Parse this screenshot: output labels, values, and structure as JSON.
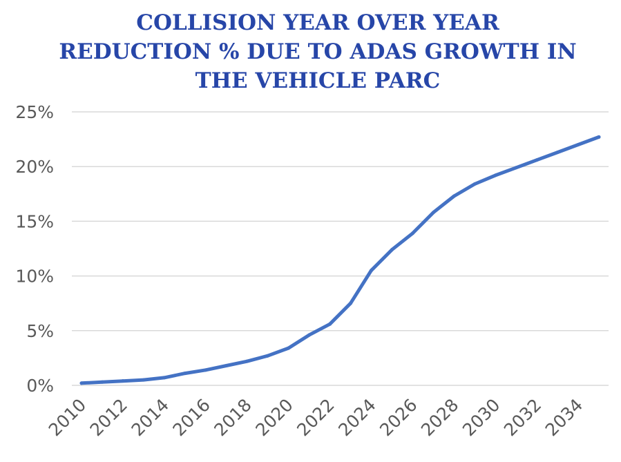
{
  "chart_data": {
    "type": "line",
    "title_lines": [
      "COLLISION YEAR OVER YEAR",
      "REDUCTION % DUE TO ADAS GROWTH IN",
      "THE VEHICLE PARC"
    ],
    "xlabel": "",
    "ylabel": "",
    "x": [
      2010,
      2011,
      2012,
      2013,
      2014,
      2015,
      2016,
      2017,
      2018,
      2019,
      2020,
      2021,
      2022,
      2023,
      2024,
      2025,
      2026,
      2027,
      2028,
      2029,
      2030,
      2031,
      2032,
      2033,
      2034,
      2035
    ],
    "series": [
      {
        "values": [
          0.2,
          0.3,
          0.4,
          0.5,
          0.7,
          1.1,
          1.4,
          1.8,
          2.2,
          2.7,
          3.4,
          4.6,
          5.6,
          7.5,
          10.5,
          12.4,
          13.9,
          15.8,
          17.3,
          18.4,
          19.2,
          19.9,
          20.6,
          21.3,
          22.0,
          22.7
        ]
      }
    ],
    "y_ticks": [
      "0%",
      "5%",
      "10%",
      "15%",
      "20%",
      "25%"
    ],
    "x_tick_labels": [
      "2010",
      "2012",
      "2014",
      "2016",
      "2018",
      "2020",
      "2022",
      "2024",
      "2026",
      "2028",
      "2030",
      "2032",
      "2034"
    ],
    "ylim": [
      0,
      25
    ],
    "xlim": [
      2010,
      2035
    ],
    "grid": true,
    "legend": "none",
    "line_color": "#4472c4",
    "title_color": "#2746a8"
  }
}
